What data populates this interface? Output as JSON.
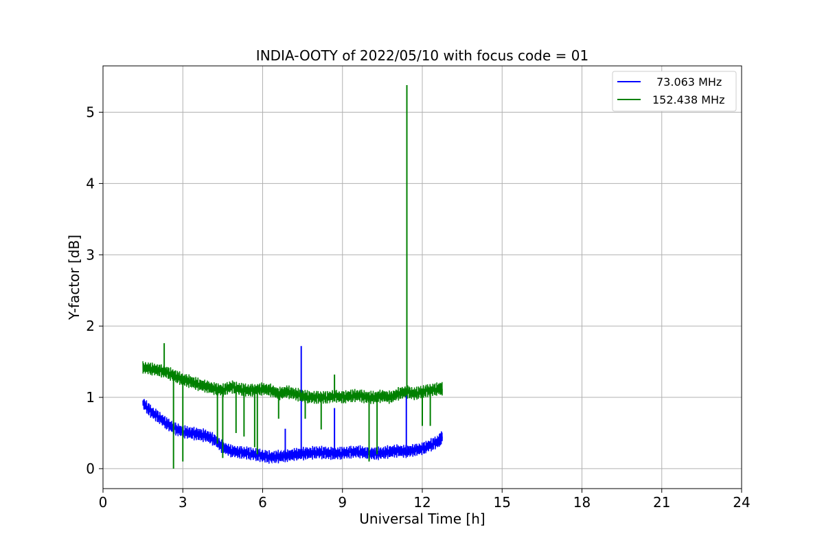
{
  "chart_data": {
    "type": "line",
    "title": "INDIA-OOTY of 2022/05/10 with focus code = 01",
    "xlabel": "Universal Time [h]",
    "ylabel": "Y-factor [dB]",
    "xlim": [
      0,
      24
    ],
    "ylim": [
      -0.28,
      5.65
    ],
    "xticks": [
      0,
      3,
      6,
      9,
      12,
      15,
      18,
      21,
      24
    ],
    "yticks": [
      0,
      1,
      2,
      3,
      4,
      5
    ],
    "grid": true,
    "legend_position": "top-right",
    "series": [
      {
        "name": "73.063 MHz",
        "color": "#0000ff",
        "x": [
          1.5,
          1.8,
          2.1,
          2.4,
          2.7,
          3.0,
          3.3,
          3.6,
          3.9,
          4.2,
          4.5,
          4.8,
          5.1,
          5.4,
          5.7,
          6.0,
          6.3,
          6.6,
          6.9,
          7.2,
          7.5,
          7.8,
          8.1,
          8.4,
          8.7,
          9.0,
          9.3,
          9.6,
          9.9,
          10.2,
          10.5,
          10.8,
          11.1,
          11.4,
          11.7,
          12.0,
          12.3,
          12.6,
          12.75
        ],
        "y": [
          0.92,
          0.8,
          0.72,
          0.63,
          0.56,
          0.52,
          0.5,
          0.48,
          0.46,
          0.4,
          0.3,
          0.25,
          0.23,
          0.22,
          0.2,
          0.18,
          0.16,
          0.17,
          0.18,
          0.2,
          0.21,
          0.22,
          0.23,
          0.22,
          0.21,
          0.22,
          0.23,
          0.24,
          0.22,
          0.21,
          0.22,
          0.24,
          0.25,
          0.24,
          0.26,
          0.28,
          0.33,
          0.38,
          0.45
        ],
        "spikes": [
          {
            "x": 6.85,
            "y": 0.56
          },
          {
            "x": 7.45,
            "y": 1.72
          },
          {
            "x": 8.7,
            "y": 0.85
          },
          {
            "x": 11.4,
            "y": 1.05
          }
        ]
      },
      {
        "name": "152.438 MHz",
        "color": "#008000",
        "x": [
          1.5,
          1.8,
          2.1,
          2.4,
          2.7,
          3.0,
          3.3,
          3.6,
          3.9,
          4.2,
          4.5,
          4.8,
          5.1,
          5.4,
          5.7,
          6.0,
          6.3,
          6.6,
          6.9,
          7.2,
          7.5,
          7.8,
          8.1,
          8.4,
          8.7,
          9.0,
          9.3,
          9.6,
          9.9,
          10.2,
          10.5,
          10.8,
          11.1,
          11.4,
          11.7,
          12.0,
          12.3,
          12.6,
          12.75
        ],
        "y": [
          1.42,
          1.4,
          1.38,
          1.35,
          1.3,
          1.25,
          1.22,
          1.18,
          1.15,
          1.12,
          1.1,
          1.15,
          1.12,
          1.1,
          1.1,
          1.12,
          1.1,
          1.05,
          1.08,
          1.05,
          1.02,
          1.0,
          1.0,
          1.0,
          1.02,
          1.0,
          1.02,
          1.03,
          1.0,
          1.0,
          1.02,
          1.0,
          1.05,
          1.08,
          1.05,
          1.08,
          1.1,
          1.12,
          1.12
        ],
        "spikes": [
          {
            "x": 2.3,
            "y": 1.76
          },
          {
            "x": 2.65,
            "y": 0.0
          },
          {
            "x": 3.0,
            "y": 0.1
          },
          {
            "x": 4.3,
            "y": 0.35
          },
          {
            "x": 4.5,
            "y": 0.15
          },
          {
            "x": 5.0,
            "y": 0.5
          },
          {
            "x": 5.3,
            "y": 0.45
          },
          {
            "x": 5.7,
            "y": 0.3
          },
          {
            "x": 5.8,
            "y": 0.2
          },
          {
            "x": 6.6,
            "y": 0.7
          },
          {
            "x": 7.6,
            "y": 0.7
          },
          {
            "x": 8.2,
            "y": 0.55
          },
          {
            "x": 8.7,
            "y": 1.32
          },
          {
            "x": 10.0,
            "y": 0.1
          },
          {
            "x": 10.3,
            "y": 0.2
          },
          {
            "x": 11.42,
            "y": 5.38
          },
          {
            "x": 12.0,
            "y": 0.6
          },
          {
            "x": 12.3,
            "y": 0.6
          }
        ]
      }
    ]
  }
}
